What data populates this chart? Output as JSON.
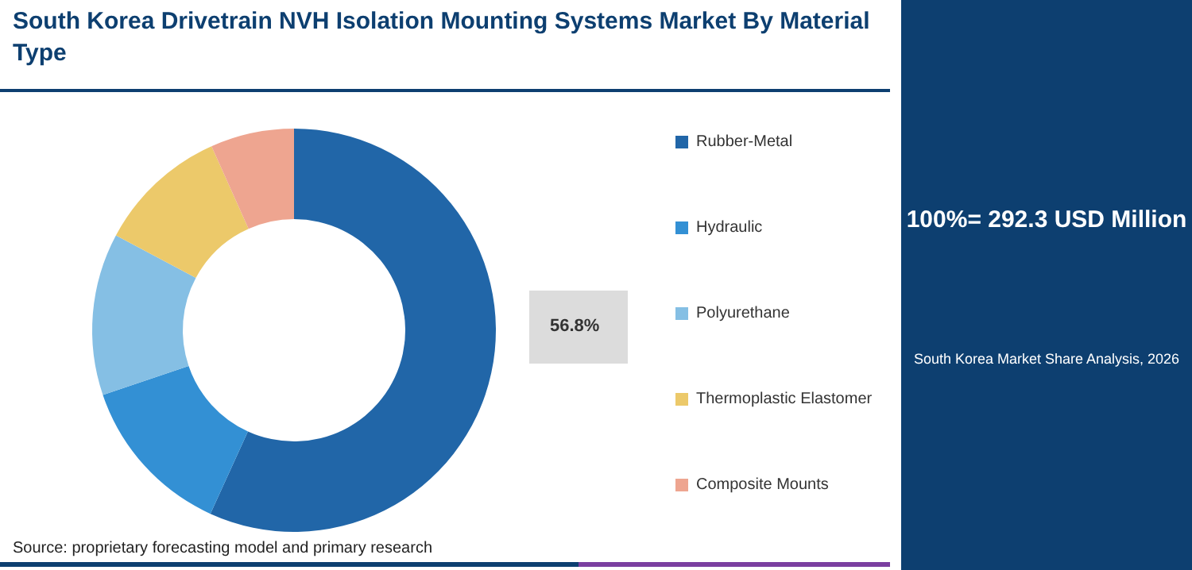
{
  "chart_data": {
    "type": "donut",
    "title": "South Korea Drivetrain NVH Isolation Mounting Systems Market By Material Type",
    "categories": [
      "Rubber-Metal",
      "Hydraulic",
      "Polyurethane",
      "Thermoplastic Elastomer",
      "Composite Mounts"
    ],
    "values": [
      56.8,
      13,
      13,
      10.5,
      6.7
    ],
    "colors": [
      "#2166a8",
      "#3390d4",
      "#85bfe4",
      "#ecc96a",
      "#eea590"
    ],
    "value_labels": [
      "56.8%",
      null,
      null,
      null,
      null
    ],
    "legend": "right",
    "annotations": [
      "100%= 292.3 USD Million",
      "South Korea Market Share Analysis, 2026",
      "Source: proprietary forecasting model and primary research"
    ]
  }
}
